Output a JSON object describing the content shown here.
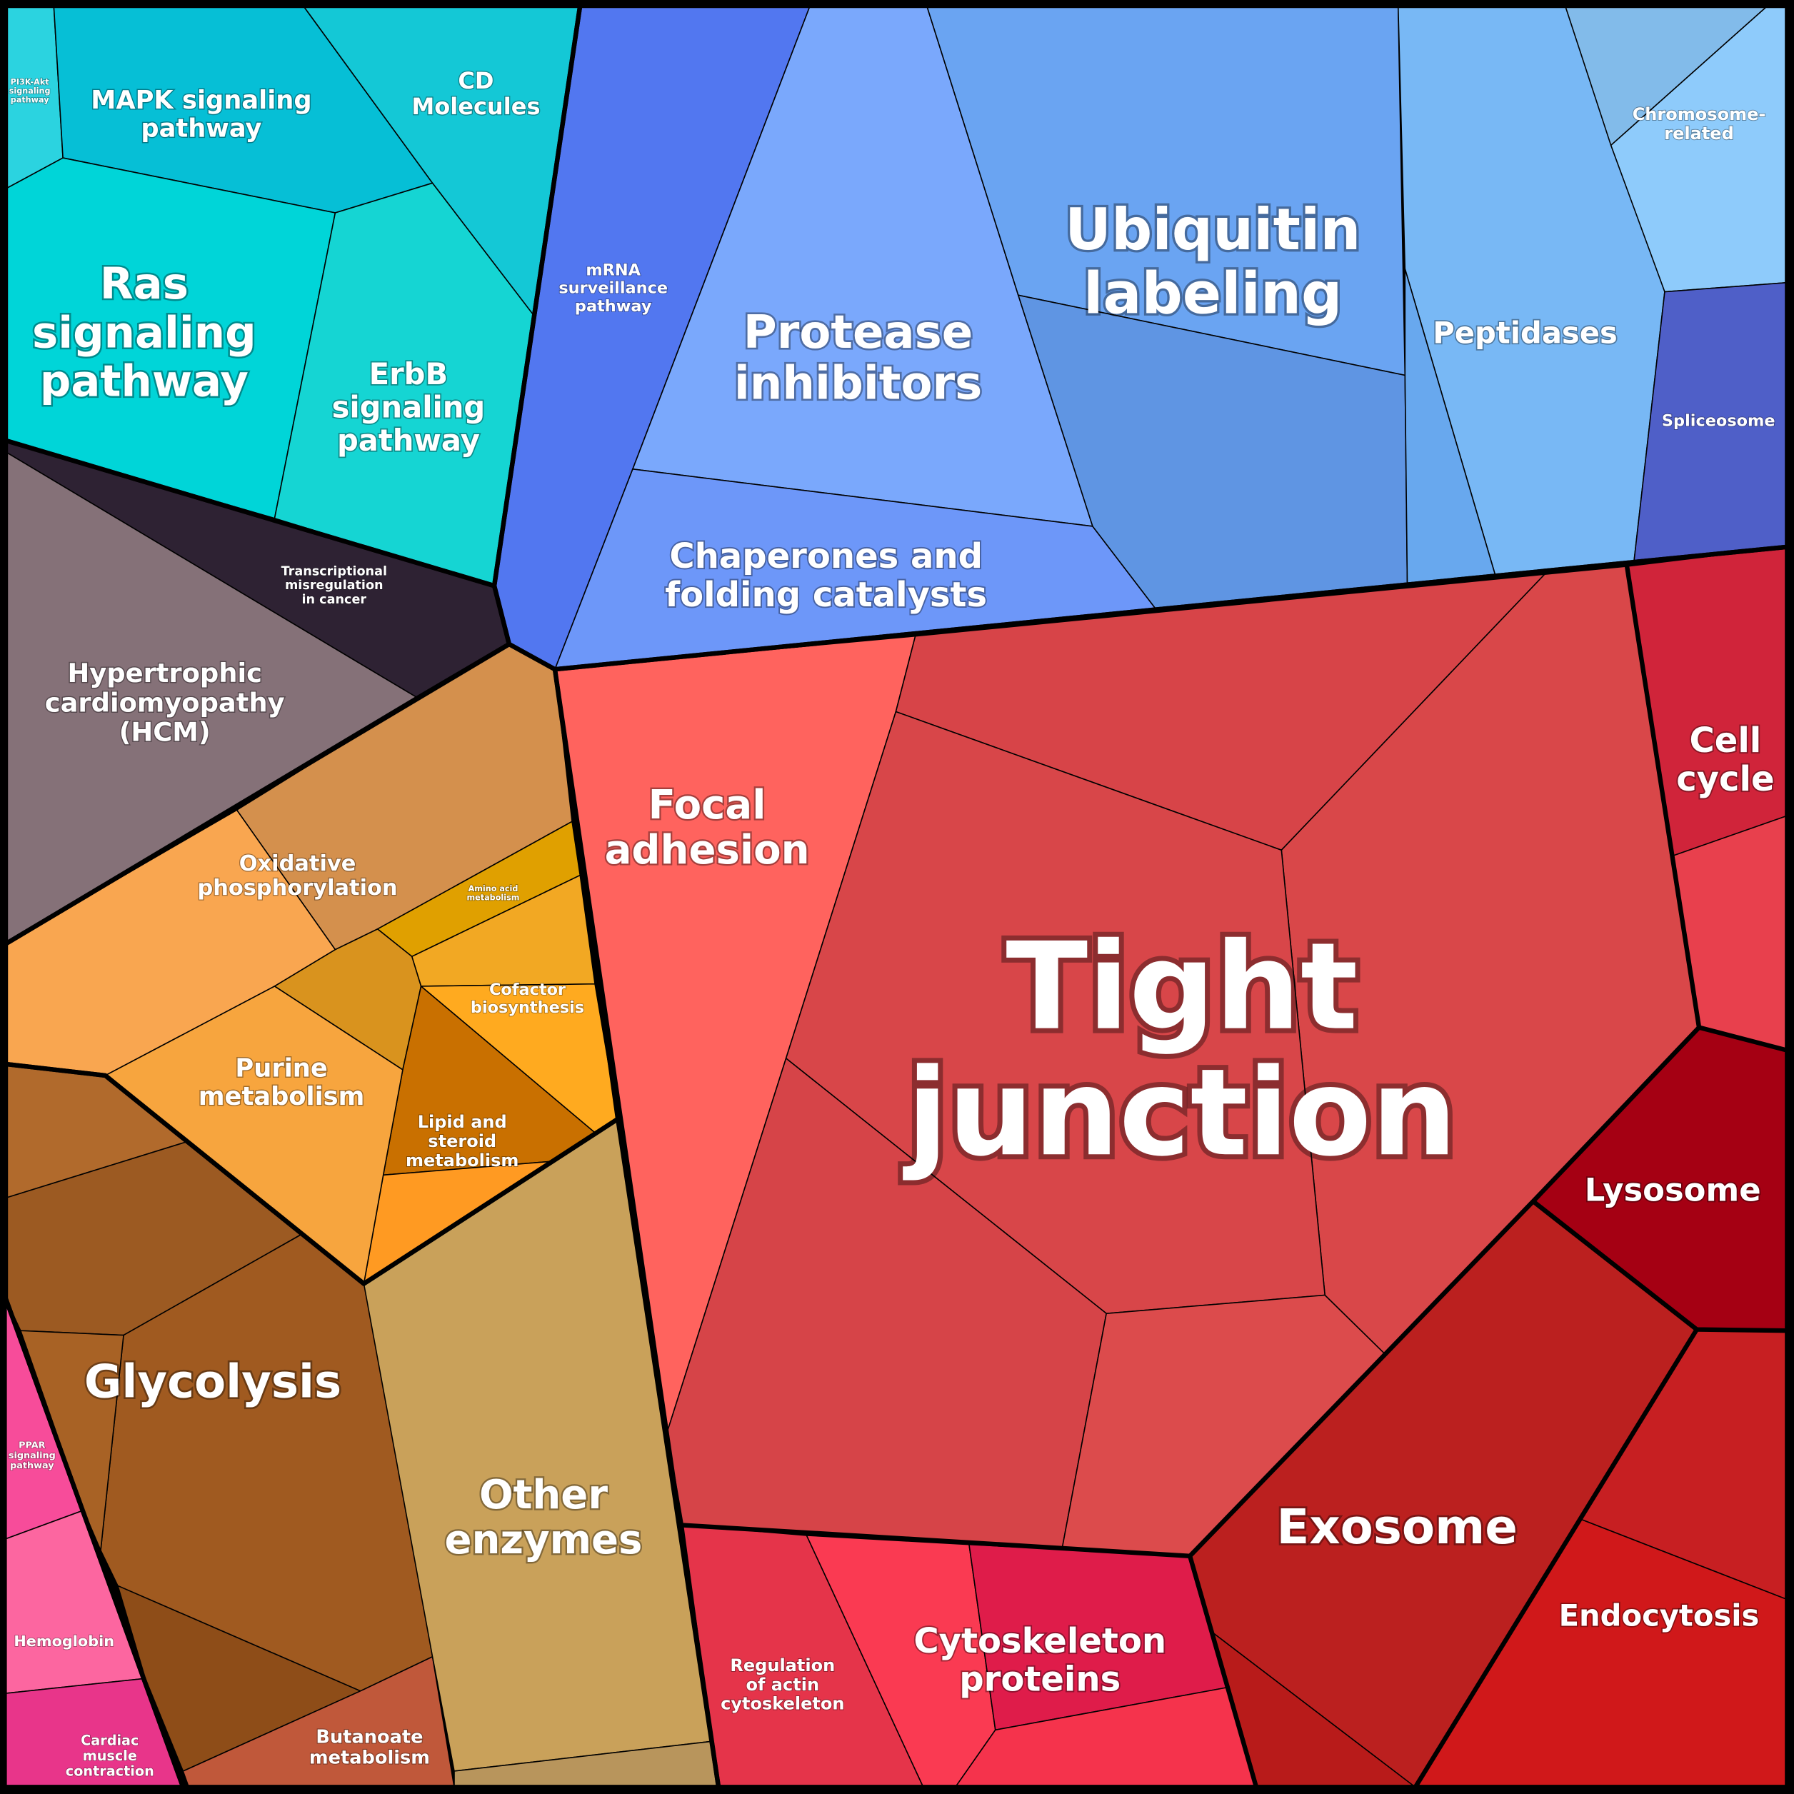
{
  "cells": [
    {
      "lines": [
        "PI3K-Akt",
        "signaling",
        "pathway"
      ]
    },
    {
      "lines": [
        "MAPK signaling",
        "pathway"
      ]
    },
    {
      "lines": [
        "CD",
        "Molecules"
      ]
    },
    {
      "lines": [
        "Ras",
        "signaling",
        "pathway"
      ]
    },
    {
      "lines": [
        "ErbB",
        "signaling",
        "pathway"
      ]
    },
    {
      "lines": [
        "Transcriptional",
        "misregulation",
        "in cancer"
      ]
    },
    {
      "lines": [
        "Hypertrophic",
        "cardiomyopathy",
        "(HCM)"
      ]
    },
    {
      "lines": [
        "Oxidative",
        "phosphorylation"
      ]
    },
    {
      "lines": [
        "Amino acid",
        "metabolism"
      ]
    },
    {
      "lines": [
        "Cofactor",
        "biosynthesis"
      ]
    },
    {
      "lines": [
        "Purine",
        "metabolism"
      ]
    },
    {
      "lines": [
        "Lipid and",
        "steroid",
        "metabolism"
      ]
    },
    {
      "lines": [
        "Glycolysis"
      ]
    },
    {
      "lines": [
        "Other",
        "enzymes"
      ]
    },
    {
      "lines": [
        "Butanoate",
        "metabolism"
      ]
    },
    {
      "lines": [
        "PPAR",
        "signaling",
        "pathway"
      ]
    },
    {
      "lines": [
        "Hemoglobin"
      ]
    },
    {
      "lines": [
        "Cardiac",
        "muscle",
        "contraction"
      ]
    },
    {
      "lines": [
        "mRNA",
        "surveillance",
        "pathway"
      ]
    },
    {
      "lines": [
        "Protease",
        "inhibitors"
      ]
    },
    {
      "lines": [
        "Chaperones and",
        "folding catalysts"
      ]
    },
    {
      "lines": [
        "Ubiquitin",
        "labeling"
      ]
    },
    {
      "lines": [
        "Peptidases"
      ]
    },
    {
      "lines": [
        "Chromosome-",
        "related"
      ]
    },
    {
      "lines": [
        "Spliceosome"
      ]
    },
    {
      "lines": [
        "Focal",
        "adhesion"
      ]
    },
    {
      "lines": [
        "Tight",
        "junction"
      ]
    },
    {
      "lines": [
        "Cell",
        "cycle"
      ]
    },
    {
      "lines": [
        "Lysosome"
      ]
    },
    {
      "lines": [
        "Exosome"
      ]
    },
    {
      "lines": [
        "Endocytosis"
      ]
    },
    {
      "lines": [
        "Regulation",
        "of actin",
        "cytoskeleton"
      ]
    },
    {
      "lines": [
        "Cytoskeleton",
        "proteins"
      ]
    }
  ]
}
